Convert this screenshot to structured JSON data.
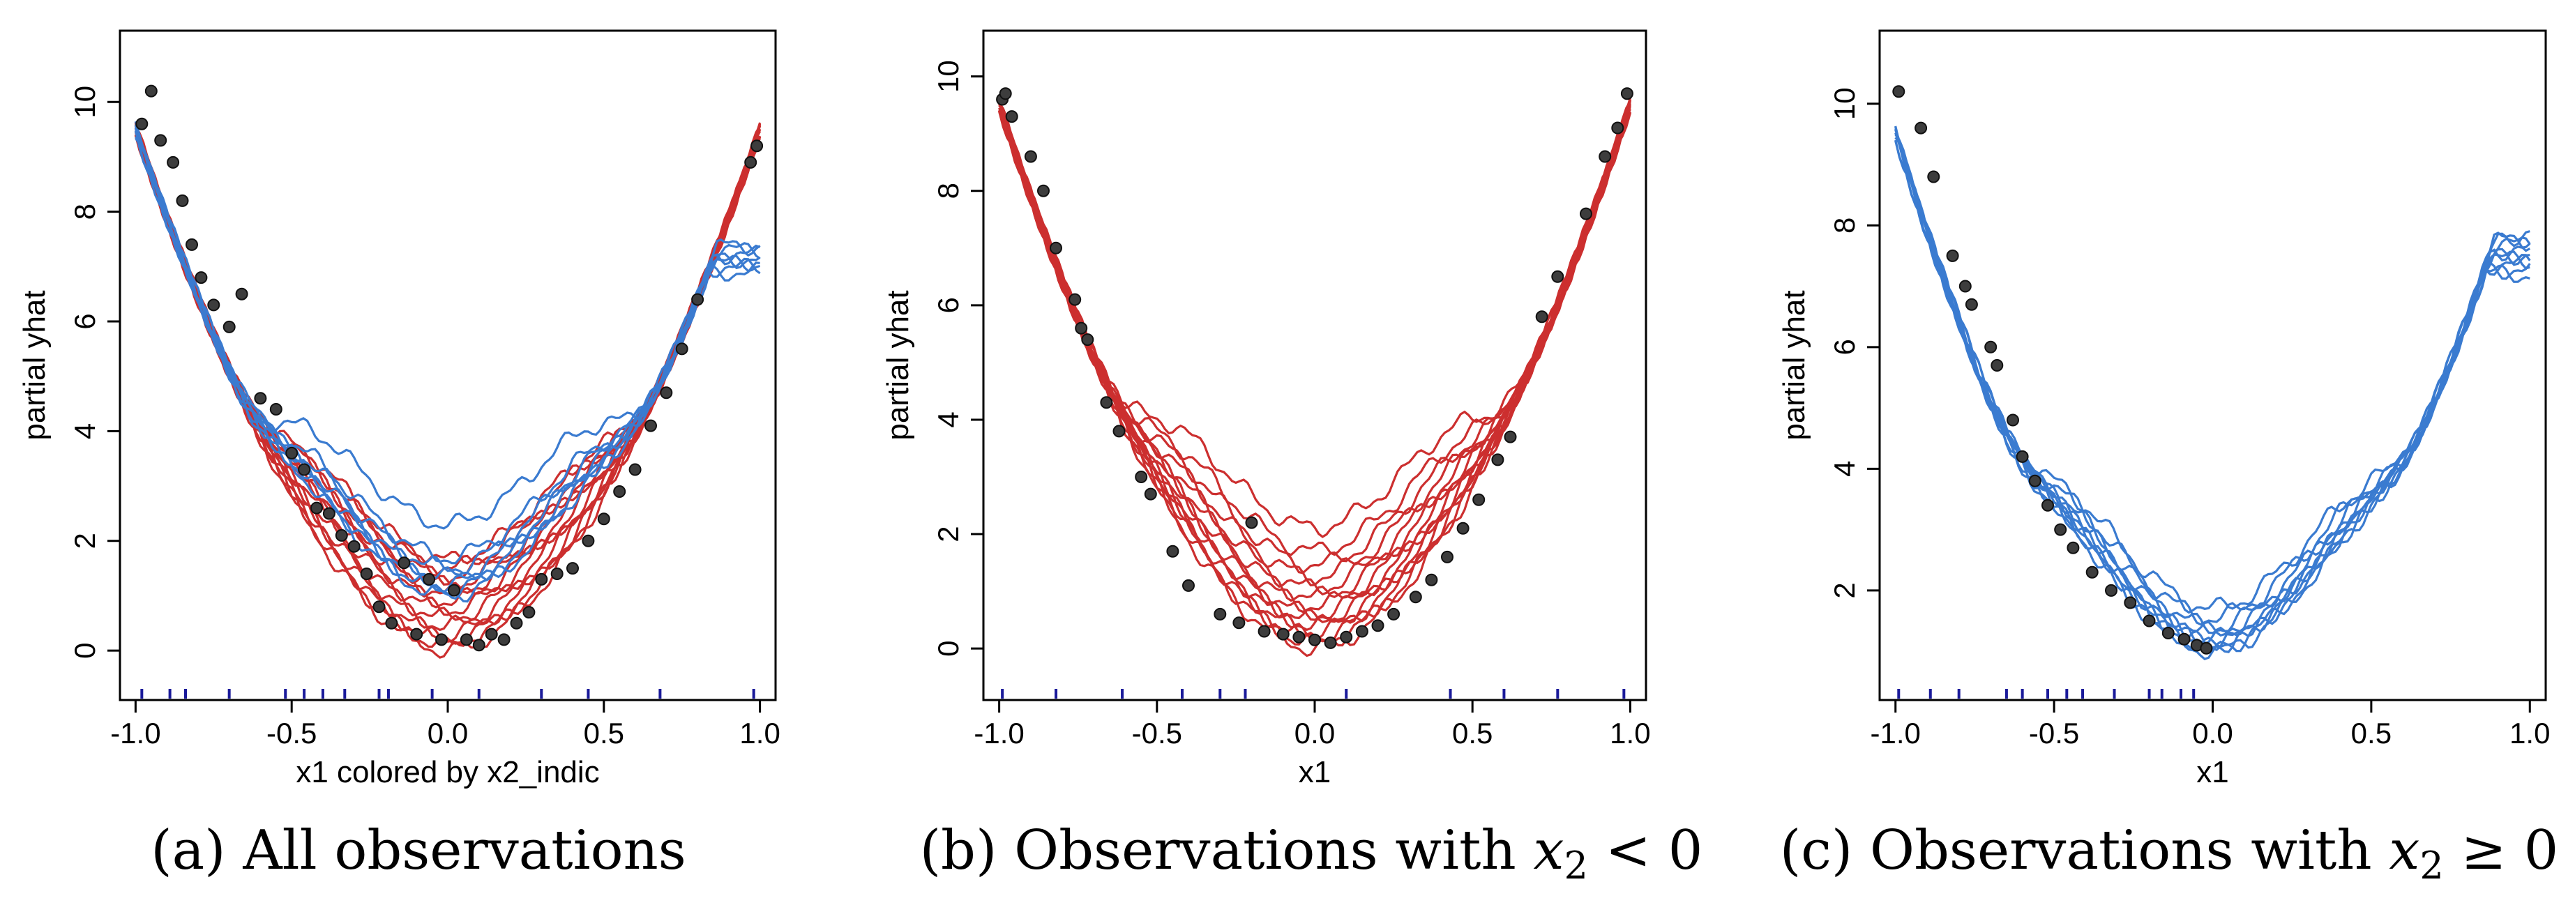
{
  "captions": {
    "a": {
      "label": "(a) All observations"
    },
    "b": {
      "prefix": "(b) Observations with ",
      "var": "x",
      "sub": "2",
      "op": " < 0"
    },
    "c": {
      "prefix": "(c) Observations with ",
      "var": "x",
      "sub": "2",
      "op": " ≥ 0"
    }
  },
  "colors": {
    "red": "#cc2f2f",
    "blue": "#3a7bd0",
    "points": "#3d3d3d",
    "rug": "#1a1a9a"
  },
  "chart_data": [
    {
      "type": "line",
      "id": "a",
      "xlabel": "x1 colored by x2_indic",
      "ylabel": "partial yhat",
      "xlim": [
        -1.05,
        1.05
      ],
      "ylim": [
        -0.9,
        11.3
      ],
      "xticks": [
        -1.0,
        -0.5,
        0.0,
        0.5,
        1.0
      ],
      "xtick_labels": [
        "-1.0",
        "-0.5",
        "0.0",
        "0.5",
        "1.0"
      ],
      "yticks": [
        0,
        2,
        4,
        6,
        8,
        10
      ],
      "ytick_labels": [
        "0",
        "2",
        "4",
        "6",
        "8",
        "10"
      ],
      "grid": false,
      "series": [
        {
          "color": "red",
          "offsets": [
            0.0,
            0.1,
            0.2,
            0.3,
            0.45,
            0.6,
            0.75,
            0.9,
            1.05,
            1.2,
            1.35,
            1.5,
            1.65
          ],
          "right_end": 9.4
        },
        {
          "color": "blue",
          "offsets": [
            1.0,
            1.1,
            1.2,
            1.35,
            1.5,
            1.7,
            2.3
          ],
          "right_end": 6.9
        }
      ],
      "points": [
        {
          "x": -0.98,
          "y": 9.6
        },
        {
          "x": -0.95,
          "y": 10.2
        },
        {
          "x": -0.92,
          "y": 9.3
        },
        {
          "x": -0.88,
          "y": 8.9
        },
        {
          "x": -0.85,
          "y": 8.2
        },
        {
          "x": -0.82,
          "y": 7.4
        },
        {
          "x": -0.79,
          "y": 6.8
        },
        {
          "x": -0.75,
          "y": 6.3
        },
        {
          "x": -0.7,
          "y": 5.9
        },
        {
          "x": -0.66,
          "y": 6.5
        },
        {
          "x": -0.6,
          "y": 4.6
        },
        {
          "x": -0.55,
          "y": 4.4
        },
        {
          "x": -0.5,
          "y": 3.6
        },
        {
          "x": -0.46,
          "y": 3.3
        },
        {
          "x": -0.42,
          "y": 2.6
        },
        {
          "x": -0.38,
          "y": 2.5
        },
        {
          "x": -0.34,
          "y": 2.1
        },
        {
          "x": -0.3,
          "y": 1.9
        },
        {
          "x": -0.26,
          "y": 1.4
        },
        {
          "x": -0.22,
          "y": 0.8
        },
        {
          "x": -0.18,
          "y": 0.5
        },
        {
          "x": -0.14,
          "y": 1.6
        },
        {
          "x": -0.1,
          "y": 0.3
        },
        {
          "x": -0.06,
          "y": 1.3
        },
        {
          "x": -0.02,
          "y": 0.2
        },
        {
          "x": 0.02,
          "y": 1.1
        },
        {
          "x": 0.06,
          "y": 0.2
        },
        {
          "x": 0.1,
          "y": 0.1
        },
        {
          "x": 0.14,
          "y": 0.3
        },
        {
          "x": 0.18,
          "y": 0.2
        },
        {
          "x": 0.22,
          "y": 0.5
        },
        {
          "x": 0.26,
          "y": 0.7
        },
        {
          "x": 0.3,
          "y": 1.3
        },
        {
          "x": 0.35,
          "y": 1.4
        },
        {
          "x": 0.4,
          "y": 1.5
        },
        {
          "x": 0.45,
          "y": 2.0
        },
        {
          "x": 0.5,
          "y": 2.4
        },
        {
          "x": 0.55,
          "y": 2.9
        },
        {
          "x": 0.6,
          "y": 3.3
        },
        {
          "x": 0.65,
          "y": 4.1
        },
        {
          "x": 0.7,
          "y": 4.7
        },
        {
          "x": 0.75,
          "y": 5.5
        },
        {
          "x": 0.8,
          "y": 6.4
        },
        {
          "x": 0.97,
          "y": 8.9
        },
        {
          "x": 0.99,
          "y": 9.2
        }
      ],
      "rug": [
        -0.98,
        -0.89,
        -0.84,
        -0.7,
        -0.52,
        -0.46,
        -0.4,
        -0.33,
        -0.22,
        -0.19,
        -0.05,
        0.1,
        0.3,
        0.45,
        0.68,
        0.98
      ]
    },
    {
      "type": "line",
      "id": "b",
      "xlabel": "x1",
      "ylabel": "partial yhat",
      "xlim": [
        -1.05,
        1.05
      ],
      "ylim": [
        -0.9,
        10.8
      ],
      "xticks": [
        -1.0,
        -0.5,
        0.0,
        0.5,
        1.0
      ],
      "xtick_labels": [
        "-1.0",
        "-0.5",
        "0.0",
        "0.5",
        "1.0"
      ],
      "yticks": [
        0,
        2,
        4,
        6,
        8,
        10
      ],
      "ytick_labels": [
        "0",
        "2",
        "4",
        "6",
        "8",
        "10"
      ],
      "grid": false,
      "series": [
        {
          "color": "red",
          "offsets": [
            0.0,
            0.1,
            0.2,
            0.3,
            0.4,
            0.5,
            0.6,
            0.75,
            0.9,
            1.05,
            1.25,
            1.45,
            1.7,
            2.1
          ],
          "right_end": 9.7
        }
      ],
      "points": [
        {
          "x": -0.99,
          "y": 9.6
        },
        {
          "x": -0.98,
          "y": 9.7
        },
        {
          "x": -0.96,
          "y": 9.3
        },
        {
          "x": -0.9,
          "y": 8.6
        },
        {
          "x": -0.86,
          "y": 8.0
        },
        {
          "x": -0.82,
          "y": 7.0
        },
        {
          "x": -0.76,
          "y": 6.1
        },
        {
          "x": -0.74,
          "y": 5.6
        },
        {
          "x": -0.72,
          "y": 5.4
        },
        {
          "x": -0.66,
          "y": 4.3
        },
        {
          "x": -0.62,
          "y": 3.8
        },
        {
          "x": -0.55,
          "y": 3.0
        },
        {
          "x": -0.52,
          "y": 2.7
        },
        {
          "x": -0.45,
          "y": 1.7
        },
        {
          "x": -0.4,
          "y": 1.1
        },
        {
          "x": -0.3,
          "y": 0.6
        },
        {
          "x": -0.24,
          "y": 0.45
        },
        {
          "x": -0.2,
          "y": 2.2
        },
        {
          "x": -0.16,
          "y": 0.3
        },
        {
          "x": -0.1,
          "y": 0.25
        },
        {
          "x": -0.05,
          "y": 0.2
        },
        {
          "x": 0.0,
          "y": 0.15
        },
        {
          "x": 0.05,
          "y": 0.1
        },
        {
          "x": 0.1,
          "y": 0.2
        },
        {
          "x": 0.15,
          "y": 0.3
        },
        {
          "x": 0.2,
          "y": 0.4
        },
        {
          "x": 0.25,
          "y": 0.6
        },
        {
          "x": 0.32,
          "y": 0.9
        },
        {
          "x": 0.37,
          "y": 1.2
        },
        {
          "x": 0.42,
          "y": 1.6
        },
        {
          "x": 0.47,
          "y": 2.1
        },
        {
          "x": 0.52,
          "y": 2.6
        },
        {
          "x": 0.58,
          "y": 3.3
        },
        {
          "x": 0.62,
          "y": 3.7
        },
        {
          "x": 0.72,
          "y": 5.8
        },
        {
          "x": 0.77,
          "y": 6.5
        },
        {
          "x": 0.86,
          "y": 7.6
        },
        {
          "x": 0.92,
          "y": 8.6
        },
        {
          "x": 0.96,
          "y": 9.1
        },
        {
          "x": 0.99,
          "y": 9.7
        }
      ],
      "rug": [
        -0.99,
        -0.82,
        -0.61,
        -0.42,
        -0.3,
        -0.22,
        0.1,
        0.43,
        0.6,
        0.77,
        0.98
      ]
    },
    {
      "type": "line",
      "id": "c",
      "xlabel": "x1",
      "ylabel": "partial yhat",
      "xlim": [
        -1.05,
        1.05
      ],
      "ylim": [
        0.2,
        11.2
      ],
      "xticks": [
        -1.0,
        -0.5,
        0.0,
        0.5,
        1.0
      ],
      "xtick_labels": [
        "-1.0",
        "-0.5",
        "0.0",
        "0.5",
        "1.0"
      ],
      "yticks": [
        2,
        4,
        6,
        8,
        10
      ],
      "ytick_labels": [
        "2",
        "4",
        "6",
        "8",
        "10"
      ],
      "grid": false,
      "series": [
        {
          "color": "blue",
          "offsets": [
            1.0,
            1.05,
            1.1,
            1.15,
            1.2,
            1.3,
            1.4,
            1.55,
            1.7
          ],
          "right_end": 7.2
        }
      ],
      "points": [
        {
          "x": -0.99,
          "y": 10.2
        },
        {
          "x": -0.92,
          "y": 9.6
        },
        {
          "x": -0.88,
          "y": 8.8
        },
        {
          "x": -0.82,
          "y": 7.5
        },
        {
          "x": -0.78,
          "y": 7.0
        },
        {
          "x": -0.76,
          "y": 6.7
        },
        {
          "x": -0.7,
          "y": 6.0
        },
        {
          "x": -0.68,
          "y": 5.7
        },
        {
          "x": -0.63,
          "y": 4.8
        },
        {
          "x": -0.6,
          "y": 4.2
        },
        {
          "x": -0.56,
          "y": 3.8
        },
        {
          "x": -0.52,
          "y": 3.4
        },
        {
          "x": -0.48,
          "y": 3.0
        },
        {
          "x": -0.44,
          "y": 2.7
        },
        {
          "x": -0.38,
          "y": 2.3
        },
        {
          "x": -0.32,
          "y": 2.0
        },
        {
          "x": -0.26,
          "y": 1.8
        },
        {
          "x": -0.2,
          "y": 1.5
        },
        {
          "x": -0.14,
          "y": 1.3
        },
        {
          "x": -0.09,
          "y": 1.2
        },
        {
          "x": -0.05,
          "y": 1.1
        },
        {
          "x": -0.02,
          "y": 1.05
        }
      ],
      "rug": [
        -0.99,
        -0.89,
        -0.8,
        -0.65,
        -0.6,
        -0.52,
        -0.46,
        -0.41,
        -0.31,
        -0.2,
        -0.16,
        -0.1,
        -0.06
      ]
    }
  ]
}
